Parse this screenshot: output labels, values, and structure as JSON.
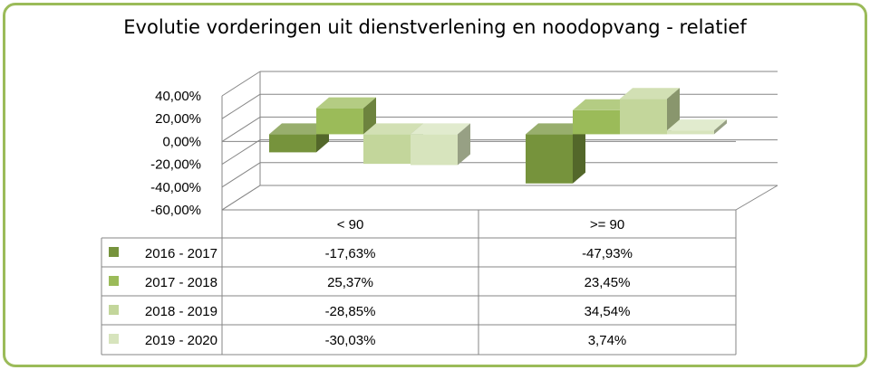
{
  "chart_data": {
    "type": "bar",
    "title": "Evolutie vorderingen uit dienstverlening en noodopvang - relatief",
    "categories": [
      "< 90",
      ">= 90"
    ],
    "series": [
      {
        "name": "2016 - 2017",
        "values": [
          -17.63,
          -47.93
        ],
        "labels": [
          "-17,63%",
          "-47,93%"
        ],
        "color": "#76933c"
      },
      {
        "name": "2017 - 2018",
        "values": [
          25.37,
          23.45
        ],
        "labels": [
          "25,37%",
          "23,45%"
        ],
        "color": "#9bbb59"
      },
      {
        "name": "2018 - 2019",
        "values": [
          -28.85,
          34.54
        ],
        "labels": [
          "-28,85%",
          "34,54%"
        ],
        "color": "#c3d69b"
      },
      {
        "name": "2019 - 2020",
        "values": [
          -30.03,
          3.74
        ],
        "labels": [
          "-30,03%",
          "3,74%"
        ],
        "color": "#d7e4bd"
      }
    ],
    "yticks": [
      "40,00%",
      "20,00%",
      "0,00%",
      "-20,00%",
      "-40,00%",
      "-60,00%"
    ],
    "ylim": [
      -60,
      40
    ],
    "grid": true,
    "legend": "data-table"
  }
}
